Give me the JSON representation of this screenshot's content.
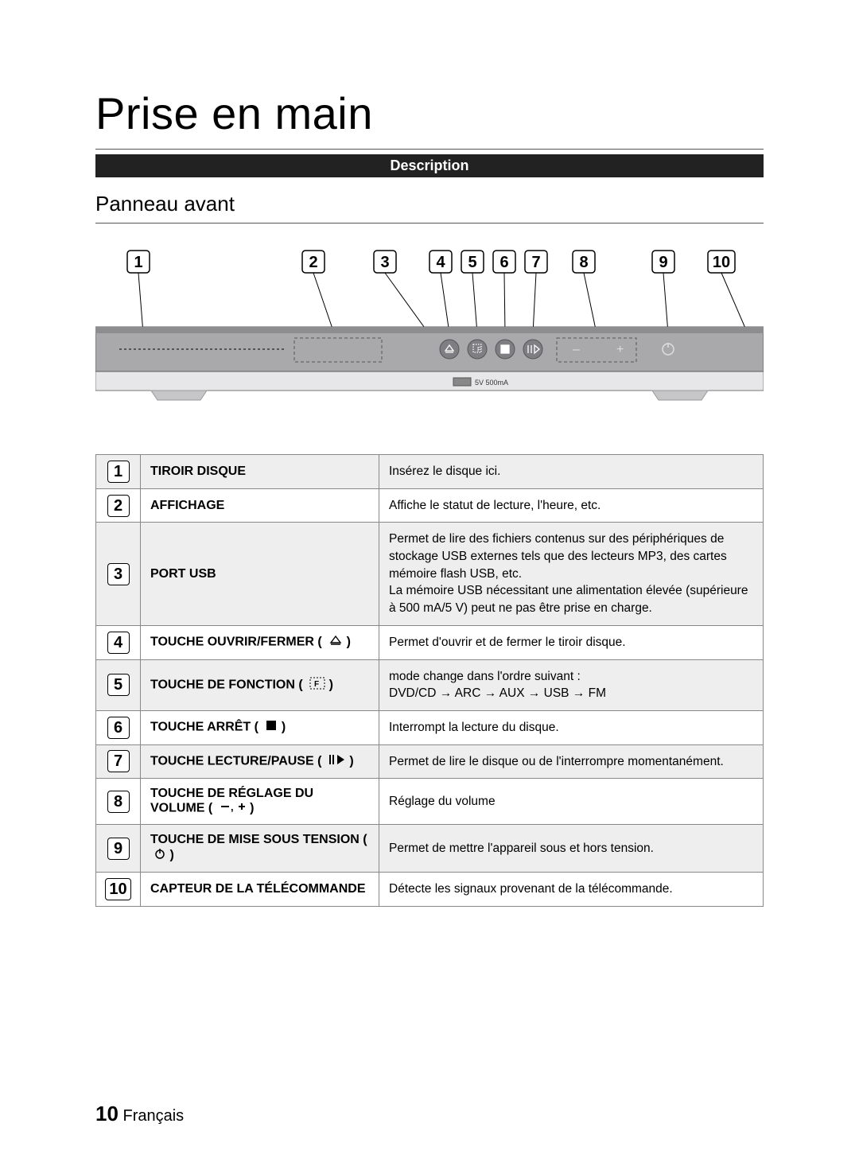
{
  "page": {
    "title": "Prise en main",
    "section_bar": "Description",
    "subheading": "Panneau avant",
    "footer_page": "10",
    "footer_lang": "Français"
  },
  "diagram": {
    "callouts": [
      "1",
      "2",
      "3",
      "4",
      "5",
      "6",
      "7",
      "8",
      "9",
      "10"
    ],
    "usb_label": "5V 500mA",
    "panel_bg": "#a9a9ac",
    "panel_border": "#5a5a5d",
    "body_bg": "#e7e7e9",
    "callout_box": {
      "border_radius": 4,
      "border_color": "#000",
      "font_weight": "bold"
    }
  },
  "table": {
    "row_alt_bg": "#eeeeee",
    "rows": [
      {
        "num": "1",
        "name": "TIROIR DISQUE",
        "icon": null,
        "desc": "Insérez le disque ici."
      },
      {
        "num": "2",
        "name": "AFFICHAGE",
        "icon": null,
        "desc": "Affiche le statut de lecture, l'heure, etc."
      },
      {
        "num": "3",
        "name": "PORT USB",
        "icon": null,
        "desc": "Permet de lire des fichiers contenus sur des périphériques de stockage USB externes tels que des lecteurs MP3, des cartes mémoire flash USB, etc.\nLa mémoire USB nécessitant une alimentation élevée (supérieure à 500 mA/5 V) peut ne pas être prise en charge."
      },
      {
        "num": "4",
        "name": "TOUCHE OUVRIR/FERMER ( ",
        "icon": "eject",
        "name_suffix": " )",
        "desc": "Permet d'ouvrir et de fermer le tiroir disque."
      },
      {
        "num": "5",
        "name": "TOUCHE DE FONCTION  ( ",
        "icon": "function",
        "name_suffix": " )",
        "desc": "mode change dans l'ordre suivant :\nDVD/CD → ARC → AUX → USB → FM"
      },
      {
        "num": "6",
        "name": "TOUCHE ARRÊT ( ",
        "icon": "stop",
        "name_suffix": " )",
        "desc": "Interrompt la lecture du disque."
      },
      {
        "num": "7",
        "name": "TOUCHE LECTURE/PAUSE ( ",
        "icon": "playpause",
        "name_suffix": " )",
        "desc": "Permet de lire le disque ou de l'interrompre momentanément."
      },
      {
        "num": "8",
        "name": "TOUCHE DE RÉGLAGE DU VOLUME ( ",
        "icon": "volume",
        "name_suffix": " )",
        "desc": "Réglage du volume"
      },
      {
        "num": "9",
        "name": "TOUCHE DE MISE SOUS TENSION ( ",
        "icon": "power",
        "name_suffix": " )",
        "desc": "Permet de mettre l'appareil sous et hors tension."
      },
      {
        "num": "10",
        "name": "CAPTEUR DE LA TÉLÉCOMMANDE",
        "icon": null,
        "desc": "Détecte les signaux provenant de la télécommande."
      }
    ]
  }
}
